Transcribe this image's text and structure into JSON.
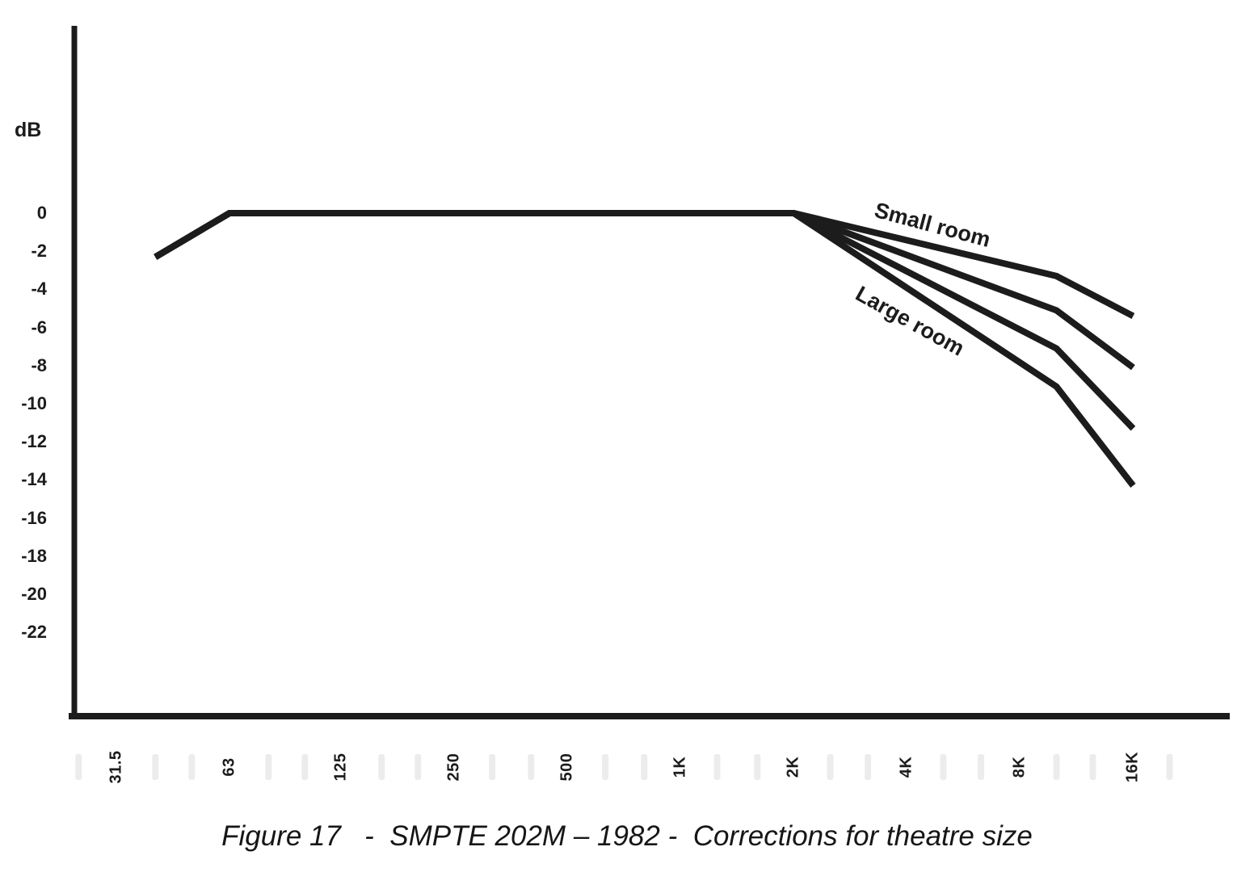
{
  "page": {
    "background": "#ffffff",
    "ink": "#1c1c1c",
    "minor_tick_color": "#ececec"
  },
  "y_axis": {
    "title": "dB",
    "tick_labels": [
      "0",
      "-2",
      "-4",
      "-6",
      "-8",
      "-10",
      "-12",
      "-14",
      "-16",
      "-18",
      "-20",
      "-22"
    ],
    "tick_values": [
      0,
      -2,
      -4,
      -6,
      -8,
      -10,
      -12,
      -14,
      -16,
      -18,
      -20,
      -22
    ]
  },
  "x_axis": {
    "tick_labels": [
      "31.5",
      "63",
      "125",
      "250",
      "500",
      "1K",
      "2K",
      "4K",
      "8K",
      "16K"
    ],
    "tick_freqs": [
      31.5,
      63,
      125,
      250,
      500,
      1000,
      2000,
      4000,
      8000,
      16000
    ],
    "minor_tick_freqs": [
      25,
      40,
      50,
      80,
      100,
      160,
      200,
      315,
      400,
      630,
      800,
      1250,
      1600,
      2500,
      3150,
      5000,
      6300,
      10000,
      12500,
      20000
    ]
  },
  "annotations": {
    "small_room": {
      "text": "Small room",
      "rotation_deg": 15
    },
    "large_room": {
      "text": "Large room",
      "rotation_deg": 29
    }
  },
  "caption": "Figure 17   -  SMPTE 202M – 1982 -  Corrections for theatre size",
  "chart_data": {
    "type": "line",
    "title": "SMPTE 202M – 1982 - Corrections for theatre size",
    "x_scale": "logarithmic (octaves)",
    "x_unit": "Hz",
    "x_range_hz": [
      25,
      20000
    ],
    "ylabel": "dB",
    "ylim": [
      -24,
      3
    ],
    "grid": false,
    "legend_style": "rotated inline labels on first and last curve",
    "series_order": "top curve = Small room, bottom curve = Large room",
    "series": [
      {
        "label": "Small room",
        "points_hz_db": [
          [
            40,
            -2.3
          ],
          [
            63,
            0
          ],
          [
            2000,
            0
          ],
          [
            10000,
            -3.3
          ],
          [
            16000,
            -5.4
          ]
        ]
      },
      {
        "label": "",
        "points_hz_db": [
          [
            40,
            -2.3
          ],
          [
            63,
            0
          ],
          [
            2000,
            0
          ],
          [
            10000,
            -5.1
          ],
          [
            16000,
            -8.1
          ]
        ]
      },
      {
        "label": "",
        "points_hz_db": [
          [
            40,
            -2.3
          ],
          [
            63,
            0
          ],
          [
            2000,
            0
          ],
          [
            10000,
            -7.1
          ],
          [
            16000,
            -11.3
          ]
        ]
      },
      {
        "label": "Large room",
        "points_hz_db": [
          [
            40,
            -2.3
          ],
          [
            63,
            0
          ],
          [
            2000,
            0
          ],
          [
            10000,
            -9.1
          ],
          [
            16000,
            -14.3
          ]
        ]
      }
    ]
  }
}
